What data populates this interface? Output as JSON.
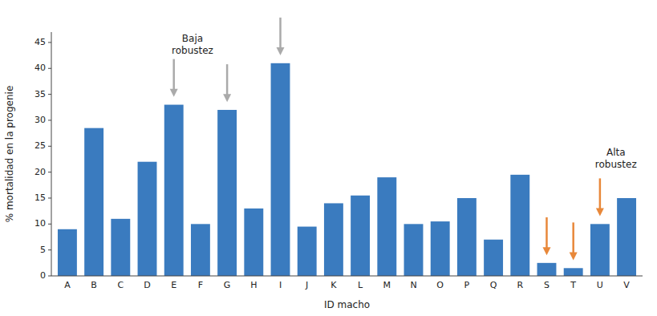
{
  "chart_data": {
    "type": "bar",
    "categories": [
      "A",
      "B",
      "C",
      "D",
      "E",
      "F",
      "G",
      "H",
      "I",
      "J",
      "K",
      "L",
      "M",
      "N",
      "O",
      "P",
      "Q",
      "R",
      "S",
      "T",
      "U",
      "V"
    ],
    "values": [
      9,
      28.5,
      11,
      22,
      33,
      10,
      32,
      13,
      41,
      9.5,
      14,
      15.5,
      19,
      10,
      10.5,
      15,
      7,
      19.5,
      2.5,
      1.5,
      10,
      15
    ],
    "color": "#3a7bbf",
    "xlabel": "ID macho",
    "ylabel": "% mortalidad en la progenie",
    "ylim": [
      0,
      47
    ],
    "yticks": [
      0,
      5,
      10,
      15,
      20,
      25,
      30,
      35,
      40,
      45
    ],
    "grid": false,
    "annotations": [
      {
        "text": "Baja\nrobustez",
        "categories": [
          "E",
          "G",
          "I"
        ],
        "color": "#aaaaaa"
      },
      {
        "text": "Alta\nrobustez",
        "categories": [
          "S",
          "T",
          "U"
        ],
        "color": "#e8883a"
      }
    ]
  }
}
